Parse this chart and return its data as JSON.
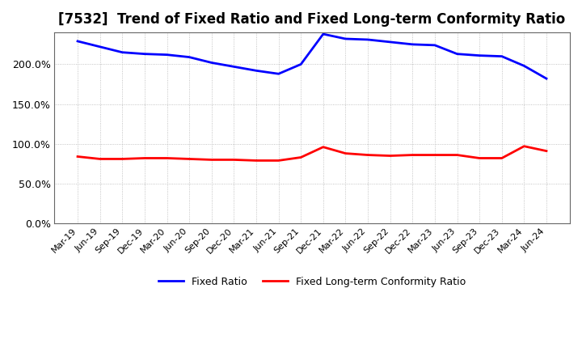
{
  "title": "[7532]  Trend of Fixed Ratio and Fixed Long-term Conformity Ratio",
  "x_labels": [
    "Mar-19",
    "Jun-19",
    "Sep-19",
    "Dec-19",
    "Mar-20",
    "Jun-20",
    "Sep-20",
    "Dec-20",
    "Mar-21",
    "Jun-21",
    "Sep-21",
    "Dec-21",
    "Mar-22",
    "Jun-22",
    "Sep-22",
    "Dec-22",
    "Mar-23",
    "Jun-23",
    "Sep-23",
    "Dec-23",
    "Mar-24",
    "Jun-24"
  ],
  "fixed_ratio": [
    229,
    222,
    215,
    213,
    212,
    209,
    202,
    197,
    192,
    188,
    200,
    238,
    232,
    231,
    228,
    225,
    224,
    213,
    211,
    210,
    198,
    182
  ],
  "fixed_lt_ratio": [
    84,
    81,
    81,
    82,
    82,
    81,
    80,
    80,
    79,
    79,
    83,
    96,
    88,
    86,
    85,
    86,
    86,
    86,
    82,
    82,
    97,
    91
  ],
  "ylim_min": 0,
  "ylim_max": 240,
  "yticks": [
    0,
    50,
    100,
    150,
    200
  ],
  "ytick_labels": [
    "0.0%",
    "50.0%",
    "100.0%",
    "150.0%",
    "200.0%"
  ],
  "fixed_ratio_color": "#0000FF",
  "fixed_lt_ratio_color": "#FF0000",
  "background_color": "#FFFFFF",
  "plot_bg_color": "#FFFFFF",
  "grid_color": "#AAAAAA",
  "legend_fixed_ratio": "Fixed Ratio",
  "legend_fixed_lt_ratio": "Fixed Long-term Conformity Ratio",
  "title_fontsize": 12,
  "tick_fontsize": 9,
  "linewidth": 2.0
}
